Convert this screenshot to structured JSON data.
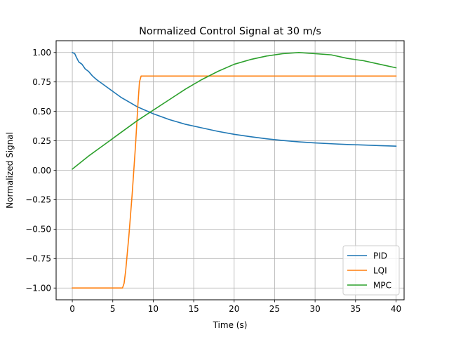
{
  "chart_data": {
    "type": "line",
    "title": "Normalized Control Signal at 30 m/s",
    "xlabel": "Time (s)",
    "ylabel": "Normalized Signal",
    "xlim": [
      -2,
      41
    ],
    "ylim": [
      -1.1,
      1.1
    ],
    "xticks": [
      0,
      5,
      10,
      15,
      20,
      25,
      30,
      35,
      40
    ],
    "yticks": [
      -1.0,
      -0.75,
      -0.5,
      -0.25,
      0.0,
      0.25,
      0.5,
      0.75,
      1.0
    ],
    "xtick_labels": [
      "0",
      "5",
      "10",
      "15",
      "20",
      "25",
      "30",
      "35",
      "40"
    ],
    "ytick_labels": [
      "−1.00",
      "−0.75",
      "−0.50",
      "−0.25",
      "0.00",
      "0.25",
      "0.50",
      "0.75",
      "1.00"
    ],
    "grid": true,
    "legend_position": "lower-right",
    "series": [
      {
        "name": "PID",
        "color": "#1f77b4",
        "x": [
          0,
          0.3,
          0.5,
          0.8,
          1.2,
          1.6,
          2.0,
          2.5,
          3.0,
          4.0,
          5.0,
          6.0,
          7.0,
          8.0,
          9.0,
          10.0,
          12.0,
          14.0,
          16.0,
          18.0,
          20.0,
          22.0,
          24.0,
          26.0,
          28.0,
          30.0,
          32.0,
          34.0,
          36.0,
          38.0,
          40.0
        ],
        "y": [
          1.0,
          0.99,
          0.96,
          0.92,
          0.9,
          0.86,
          0.84,
          0.8,
          0.77,
          0.72,
          0.67,
          0.62,
          0.58,
          0.54,
          0.51,
          0.48,
          0.43,
          0.39,
          0.36,
          0.33,
          0.305,
          0.285,
          0.267,
          0.253,
          0.241,
          0.232,
          0.225,
          0.219,
          0.214,
          0.209,
          0.205
        ]
      },
      {
        "name": "LQI",
        "color": "#ff7f0e",
        "x": [
          0,
          6.2,
          6.4,
          6.6,
          7.0,
          7.4,
          7.8,
          8.1,
          8.3,
          8.5,
          40
        ],
        "y": [
          -1.0,
          -1.0,
          -0.96,
          -0.85,
          -0.55,
          -0.2,
          0.2,
          0.55,
          0.75,
          0.8,
          0.8
        ]
      },
      {
        "name": "MPC",
        "color": "#2ca02c",
        "x": [
          0,
          2,
          4,
          6,
          8,
          10,
          12,
          14,
          16,
          18,
          20,
          22,
          24,
          26,
          28,
          30,
          32,
          34,
          36,
          38,
          40
        ],
        "y": [
          0.01,
          0.12,
          0.22,
          0.32,
          0.42,
          0.51,
          0.6,
          0.69,
          0.77,
          0.84,
          0.9,
          0.94,
          0.97,
          0.99,
          1.0,
          0.99,
          0.98,
          0.95,
          0.93,
          0.9,
          0.87
        ]
      }
    ]
  }
}
